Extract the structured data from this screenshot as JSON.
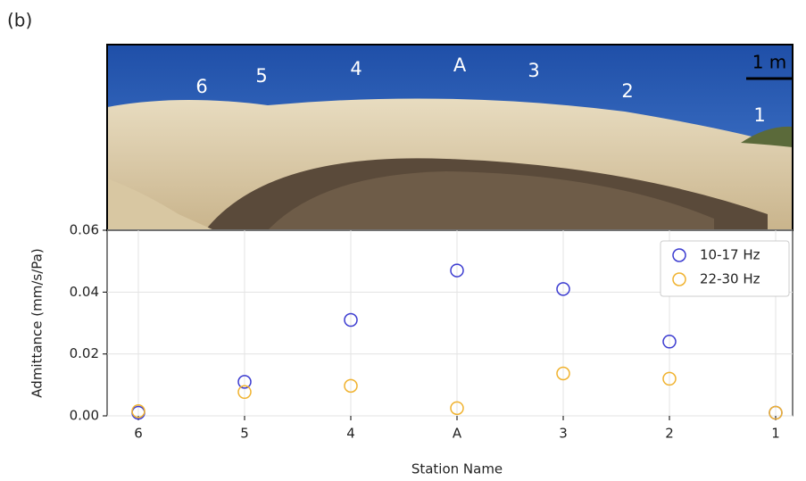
{
  "panel_label": "(b)",
  "photo": {
    "station_labels": [
      "6",
      "5",
      "4",
      "A",
      "3",
      "2",
      "1"
    ],
    "scale_bar": "1 m"
  },
  "chart_data": {
    "type": "scatter",
    "categories": [
      "6",
      "5",
      "4",
      "A",
      "3",
      "2",
      "1"
    ],
    "series": [
      {
        "name": "10-17 Hz",
        "color": "#3b3bd0",
        "values": [
          0.001,
          0.011,
          0.031,
          0.047,
          0.041,
          0.024,
          0.001
        ]
      },
      {
        "name": "22-30 Hz",
        "color": "#f0b22e",
        "values": [
          0.0015,
          0.0077,
          0.0097,
          0.0025,
          0.0137,
          0.012,
          0.001
        ]
      }
    ],
    "x_label": "Station Name",
    "y_label": "Admittance (mm/s/Pa)",
    "ylim": [
      0,
      0.06
    ],
    "yticks": [
      {
        "value": 0,
        "label": "0.00"
      },
      0.02,
      0.04,
      0.06
    ],
    "grid": true,
    "legend": "upper right"
  }
}
